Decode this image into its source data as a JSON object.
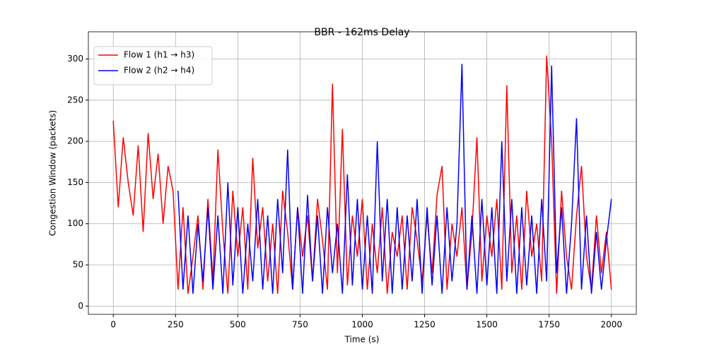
{
  "chart_data": {
    "type": "line",
    "title": "BBR - 162ms Delay",
    "x_label": "Time (s)",
    "y_label": "Congestion Window (packets)",
    "x": [
      0,
      20,
      40,
      60,
      80,
      100,
      120,
      140,
      160,
      180,
      200,
      220,
      240,
      260,
      280,
      300,
      320,
      340,
      360,
      380,
      400,
      420,
      440,
      460,
      480,
      500,
      520,
      540,
      560,
      580,
      600,
      620,
      640,
      660,
      680,
      700,
      720,
      740,
      760,
      780,
      800,
      820,
      840,
      860,
      880,
      900,
      920,
      940,
      960,
      980,
      1000,
      1020,
      1040,
      1060,
      1080,
      1100,
      1120,
      1140,
      1160,
      1180,
      1200,
      1220,
      1240,
      1260,
      1280,
      1300,
      1320,
      1340,
      1360,
      1380,
      1400,
      1420,
      1440,
      1460,
      1480,
      1500,
      1520,
      1540,
      1560,
      1580,
      1600,
      1620,
      1640,
      1660,
      1680,
      1700,
      1720,
      1740,
      1760,
      1780,
      1800,
      1820,
      1840,
      1860,
      1880,
      1900,
      1920,
      1940,
      1960,
      1980,
      2000
    ],
    "series": [
      {
        "name": "Flow 1 (h1 → h3)",
        "color": "#ff0000",
        "values": [
          225,
          120,
          205,
          150,
          110,
          195,
          90,
          210,
          130,
          185,
          100,
          170,
          140,
          20,
          120,
          15,
          60,
          110,
          20,
          130,
          30,
          190,
          90,
          15,
          140,
          60,
          120,
          20,
          180,
          70,
          120,
          30,
          100,
          15,
          140,
          90,
          20,
          120,
          60,
          110,
          30,
          130,
          80,
          20,
          270,
          40,
          215,
          25,
          110,
          60,
          130,
          20,
          100,
          40,
          120,
          15,
          90,
          60,
          110,
          20,
          120,
          80,
          30,
          110,
          40,
          135,
          170,
          20,
          100,
          60,
          120,
          20,
          90,
          205,
          30,
          110,
          60,
          130,
          20,
          268,
          40,
          110,
          20,
          140,
          60,
          100,
          30,
          304,
          200,
          15,
          140,
          60,
          20,
          110,
          170,
          60,
          20,
          110,
          40,
          90,
          20
        ]
      },
      {
        "name": "Flow 2 (h2 → h4)",
        "color": "#0000ff",
        "values": [
          null,
          null,
          null,
          null,
          null,
          null,
          null,
          null,
          null,
          null,
          null,
          null,
          null,
          140,
          20,
          110,
          15,
          100,
          30,
          120,
          20,
          110,
          15,
          150,
          25,
          120,
          15,
          100,
          30,
          130,
          20,
          110,
          15,
          130,
          40,
          190,
          20,
          120,
          15,
          135,
          30,
          110,
          15,
          120,
          40,
          100,
          15,
          160,
          25,
          130,
          20,
          110,
          15,
          200,
          30,
          130,
          15,
          120,
          20,
          110,
          30,
          130,
          15,
          120,
          25,
          110,
          15,
          120,
          30,
          100,
          294,
          20,
          110,
          15,
          130,
          25,
          120,
          15,
          200,
          30,
          130,
          15,
          120,
          25,
          110,
          15,
          130,
          30,
          292,
          40,
          120,
          15,
          100,
          228,
          20,
          110,
          15,
          90,
          20,
          80,
          130
        ]
      }
    ],
    "xlim": [
      -100,
      2100
    ],
    "ylim": [
      -10,
      333
    ],
    "xticks": [
      0,
      250,
      500,
      750,
      1000,
      1250,
      1500,
      1750,
      2000
    ],
    "yticks": [
      0,
      50,
      100,
      150,
      200,
      250,
      300
    ],
    "grid": true,
    "legend": "upper-left"
  }
}
